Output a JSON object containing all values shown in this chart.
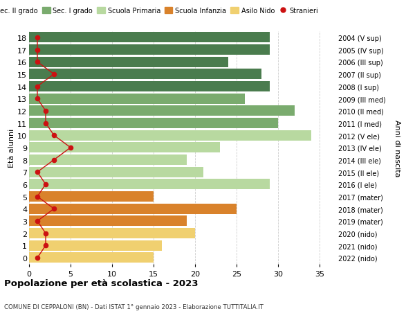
{
  "ages": [
    0,
    1,
    2,
    3,
    4,
    5,
    6,
    7,
    8,
    9,
    10,
    11,
    12,
    13,
    14,
    15,
    16,
    17,
    18
  ],
  "years": [
    "2022 (nido)",
    "2021 (nido)",
    "2020 (nido)",
    "2019 (mater)",
    "2018 (mater)",
    "2017 (mater)",
    "2016 (I ele)",
    "2015 (II ele)",
    "2014 (III ele)",
    "2013 (IV ele)",
    "2012 (V ele)",
    "2011 (I med)",
    "2010 (II med)",
    "2009 (III med)",
    "2008 (I sup)",
    "2007 (II sup)",
    "2006 (III sup)",
    "2005 (IV sup)",
    "2004 (V sup)"
  ],
  "bar_values": [
    15,
    16,
    20,
    19,
    25,
    15,
    29,
    21,
    19,
    23,
    34,
    30,
    32,
    26,
    29,
    28,
    24,
    29,
    29
  ],
  "bar_colors": [
    "#f0d070",
    "#f0d070",
    "#f0d070",
    "#d9822b",
    "#d9822b",
    "#d9822b",
    "#b8d9a0",
    "#b8d9a0",
    "#b8d9a0",
    "#b8d9a0",
    "#b8d9a0",
    "#7aab6e",
    "#7aab6e",
    "#7aab6e",
    "#4a7c4e",
    "#4a7c4e",
    "#4a7c4e",
    "#4a7c4e",
    "#4a7c4e"
  ],
  "stranieri_values": [
    1,
    2,
    2,
    1,
    3,
    1,
    2,
    1,
    3,
    5,
    3,
    2,
    2,
    1,
    1,
    3,
    1,
    1,
    1
  ],
  "stranieri_color": "#cc1111",
  "legend_colors": [
    "#4a7c4e",
    "#7aab6e",
    "#b8d9a0",
    "#d9822b",
    "#f0d070",
    "#cc1111"
  ],
  "legend_labels": [
    "Sec. II grado",
    "Sec. I grado",
    "Scuola Primaria",
    "Scuola Infanzia",
    "Asilo Nido",
    "Stranieri"
  ],
  "ylabel_left": "Età alunni",
  "ylabel_right": "Anni di nascita",
  "title": "Popolazione per età scolastica - 2023",
  "subtitle": "COMUNE DI CEPPALONI (BN) - Dati ISTAT 1° gennaio 2023 - Elaborazione TUTTITALIA.IT",
  "xlim": [
    0,
    37
  ],
  "background_color": "#ffffff",
  "grid_color": "#cccccc"
}
